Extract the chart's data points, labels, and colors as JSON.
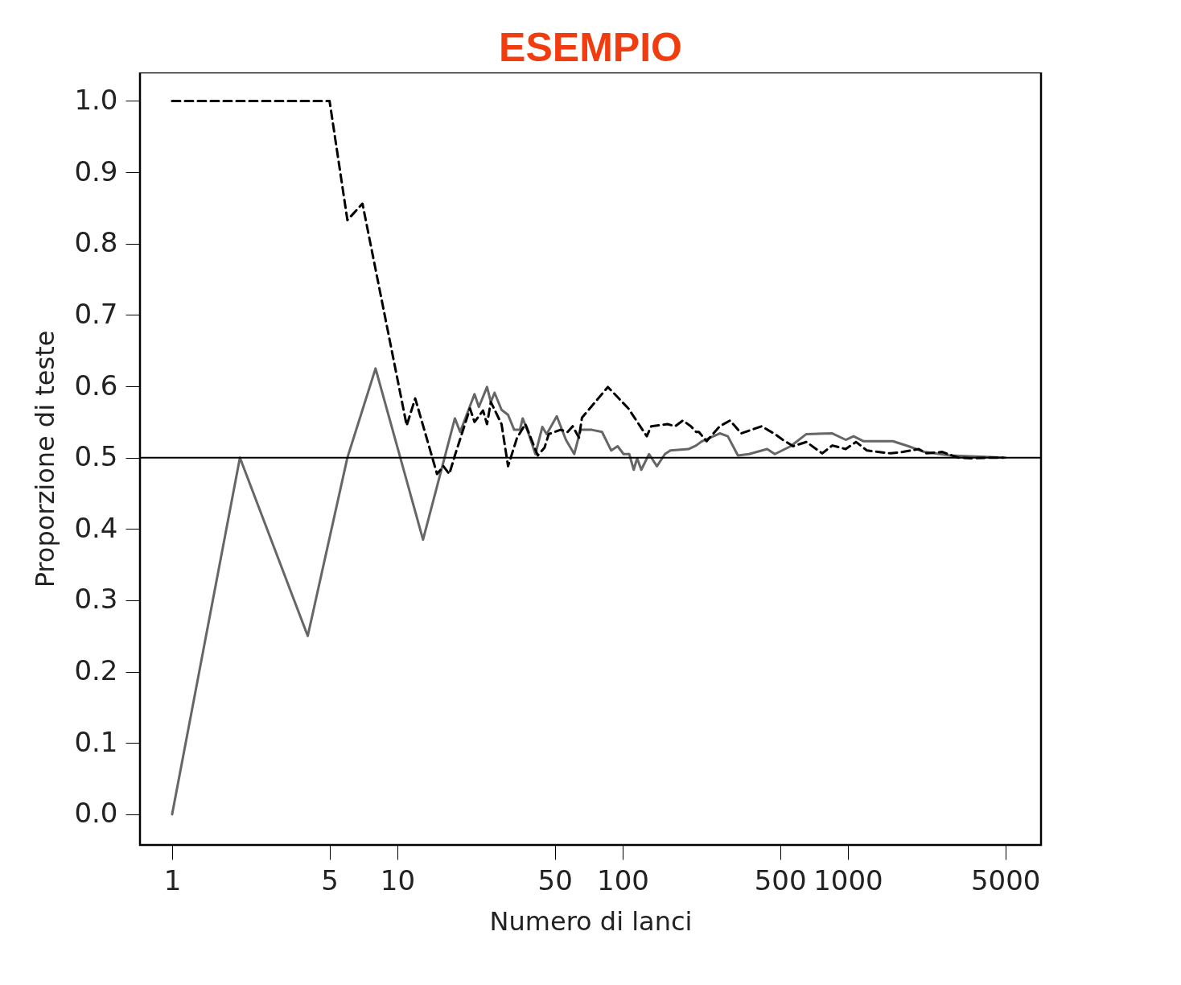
{
  "chart_data": {
    "type": "line",
    "title": "ESEMPIO",
    "xlabel": "Numero di lanci",
    "ylabel": "Proporzione di teste",
    "log": "x",
    "grid": false,
    "marker": "none",
    "xlim": [
      0.72,
      7200
    ],
    "xticks": [
      1,
      5,
      10,
      50,
      100,
      500,
      1000,
      5000
    ],
    "ylim": [
      -0.043,
      1.04
    ],
    "yticks": [
      {
        "value": 0,
        "label": "0.0"
      },
      0.1,
      0.2,
      0.3,
      0.4,
      0.5,
      0.6,
      0.7,
      0.8,
      0.9,
      {
        "value": 1,
        "label": "1.0"
      }
    ],
    "ref_lines": [
      {
        "axis": "y",
        "value": 0.5,
        "color": "#000000",
        "line_style": "solid"
      }
    ],
    "series": [
      {
        "color": "#666666",
        "line_style": "solid",
        "x": [
          1,
          2,
          4,
          6,
          8,
          13,
          18,
          19,
          22,
          23,
          25,
          26,
          27,
          29,
          31,
          33,
          35,
          36,
          38,
          41,
          44,
          46,
          51,
          56,
          61,
          65,
          73,
          81,
          89,
          95,
          101,
          107,
          112,
          116,
          121,
          131,
          142,
          154,
          163,
          196,
          212,
          225,
          270,
          293,
          325,
          364,
          438,
          474,
          557,
          654,
          853,
          978,
          1060,
          1175,
          1584,
          1858,
          2183,
          2846,
          5000
        ],
        "values": [
          0,
          0.5,
          0.25,
          0.5,
          0.625,
          0.385,
          0.555,
          0.536,
          0.589,
          0.571,
          0.599,
          0.578,
          0.591,
          0.567,
          0.56,
          0.539,
          0.539,
          0.555,
          0.536,
          0.505,
          0.543,
          0.533,
          0.558,
          0.525,
          0.505,
          0.539,
          0.539,
          0.536,
          0.51,
          0.516,
          0.505,
          0.505,
          0.483,
          0.499,
          0.483,
          0.505,
          0.488,
          0.505,
          0.51,
          0.512,
          0.517,
          0.523,
          0.534,
          0.53,
          0.503,
          0.505,
          0.512,
          0.505,
          0.516,
          0.533,
          0.534,
          0.525,
          0.53,
          0.523,
          0.523,
          0.516,
          0.508,
          0.503,
          0.5
        ]
      },
      {
        "color": "#000000",
        "line_style": "dashed",
        "x": [
          1,
          5,
          6,
          7,
          11,
          12,
          15,
          16,
          17,
          18,
          21,
          22,
          24,
          25,
          26,
          29,
          31,
          34,
          37,
          42,
          45,
          47,
          53,
          57,
          60,
          64,
          66,
          86,
          106,
          128,
          134,
          158,
          171,
          185,
          201,
          212,
          218,
          236,
          270,
          300,
          336,
          414,
          474,
          514,
          571,
          654,
          769,
          853,
          978,
          1086,
          1215,
          1545,
          1757,
          2064,
          2238,
          2625,
          3084,
          3534,
          4254,
          4876
        ],
        "values": [
          1,
          1,
          0.833,
          0.856,
          0.545,
          0.583,
          0.477,
          0.488,
          0.477,
          0.503,
          0.569,
          0.55,
          0.566,
          0.547,
          0.578,
          0.547,
          0.488,
          0.528,
          0.547,
          0.503,
          0.514,
          0.533,
          0.539,
          0.536,
          0.544,
          0.528,
          0.556,
          0.599,
          0.569,
          0.53,
          0.544,
          0.547,
          0.544,
          0.552,
          0.544,
          0.536,
          0.536,
          0.523,
          0.544,
          0.552,
          0.534,
          0.544,
          0.533,
          0.525,
          0.516,
          0.522,
          0.506,
          0.517,
          0.512,
          0.522,
          0.51,
          0.506,
          0.508,
          0.512,
          0.506,
          0.508,
          0.5,
          0.499,
          0.5,
          0.5
        ]
      }
    ]
  }
}
